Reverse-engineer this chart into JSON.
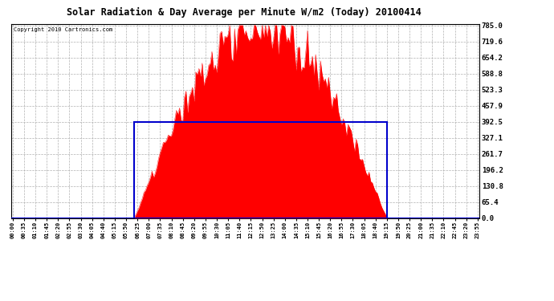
{
  "title": "Solar Radiation & Day Average per Minute W/m2 (Today) 20100414",
  "copyright_text": "Copyright 2010 Cartronics.com",
  "background_color": "#ffffff",
  "plot_bg_color": "#ffffff",
  "grid_color": "#aaaaaa",
  "solar_color": "#ff0000",
  "avg_rect_color": "#0000cc",
  "ymax": 785.0,
  "ymin": 0.0,
  "yticks": [
    0.0,
    65.4,
    130.8,
    196.2,
    261.7,
    327.1,
    392.5,
    457.9,
    523.3,
    588.8,
    654.2,
    719.6,
    785.0
  ],
  "day_avg_value": 392.5,
  "sunrise_idx": 75,
  "sunset_idx": 231,
  "num_points": 288,
  "peak_value": 785.0,
  "tick_step": 7,
  "minutes_per_point": 5
}
